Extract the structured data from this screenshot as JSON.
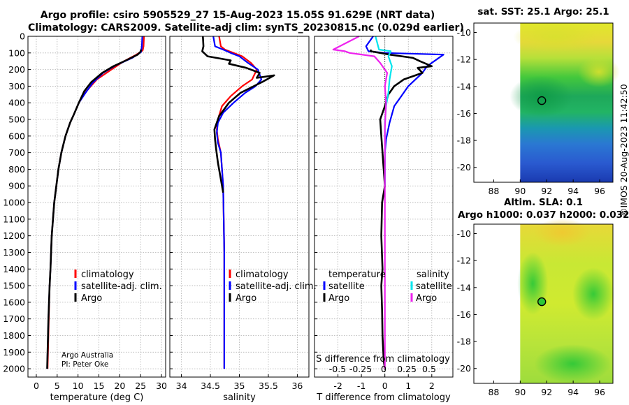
{
  "titles": {
    "line1": "Argo profile: csiro 5905529_27 15-Aug-2023 15.05S 91.629E (NRT data)",
    "line2": "Climatology: CARS2009. Satellite-adj clim: synTS_20230815.nc (0.029d earlier)"
  },
  "maps": {
    "sst_title": "sat. SST: 25.1 Argo: 25.1",
    "sla_title1": "Altim. SLA: 0.1",
    "sla_title2": "Argo h1000: 0.037 h2000: 0.032"
  },
  "credit": {
    "line1": "Argo Australia",
    "line2": "PI: Peter Oke"
  },
  "timestamp": "©IMOS 20-Aug-2023 11:42:50",
  "colors": {
    "climatology": "#ff0000",
    "satellite": "#0000ff",
    "argo": "#000000",
    "sal_satellite": "#00e5ee",
    "sal_argo": "#ee22ee"
  },
  "chart_data": [
    {
      "type": "line",
      "xlabel": "temperature (deg C)",
      "ylabel": "",
      "xlim": [
        -2,
        31
      ],
      "ylim": [
        2050,
        0
      ],
      "xticks": [
        0,
        5,
        10,
        15,
        20,
        25,
        30
      ],
      "yticks": [
        0,
        100,
        200,
        300,
        400,
        500,
        600,
        700,
        800,
        900,
        1000,
        1100,
        1200,
        1300,
        1400,
        1500,
        1600,
        1700,
        1800,
        1900,
        2000
      ],
      "legend": [
        "climatology",
        "satellite-adj. clim.",
        "Argo"
      ],
      "series": [
        {
          "name": "climatology",
          "color": "#ff0000",
          "x": [
            25.8,
            25.7,
            25.5,
            24,
            21,
            18,
            14.5,
            12,
            10.2,
            9,
            8.1,
            7,
            6,
            5.3,
            4.8,
            4.3,
            4,
            3.7,
            3.4,
            3.2,
            3,
            2.8,
            2.7
          ],
          "y": [
            0,
            60,
            85,
            110,
            150,
            200,
            260,
            330,
            400,
            470,
            520,
            600,
            700,
            800,
            900,
            1000,
            1100,
            1200,
            1400,
            1500,
            1700,
            1900,
            2000
          ]
        },
        {
          "name": "satellite-adj. clim.",
          "color": "#0000ff",
          "x": [
            25.4,
            25.3,
            25.1,
            23,
            19,
            16,
            13.5,
            11.8,
            10.2,
            9,
            8.1,
            7,
            6,
            5.3,
            4.8,
            4.3,
            4,
            3.7,
            3.4,
            3.2,
            2.9,
            2.7,
            2.6
          ],
          "y": [
            0,
            60,
            95,
            130,
            175,
            220,
            280,
            340,
            400,
            470,
            520,
            600,
            700,
            800,
            900,
            1000,
            1100,
            1200,
            1400,
            1500,
            1700,
            1900,
            2000
          ]
        },
        {
          "name": "Argo",
          "color": "#000000",
          "x": [
            25.1,
            25,
            24.3,
            21.5,
            18.5,
            15.8,
            13.2,
            11.5,
            10.2,
            9,
            8.1,
            7,
            6,
            5.3,
            4.8,
            4.3,
            4,
            3.7,
            3.4,
            3.2,
            2.9,
            2.7,
            2.6
          ],
          "y": [
            80,
            92,
            110,
            145,
            180,
            220,
            275,
            330,
            400,
            470,
            520,
            600,
            700,
            800,
            900,
            1000,
            1100,
            1200,
            1400,
            1500,
            1700,
            1900,
            2000
          ]
        }
      ]
    },
    {
      "type": "line",
      "xlabel": "salinity",
      "ylabel": "",
      "xlim": [
        33.8,
        36.2
      ],
      "ylim": [
        2050,
        0
      ],
      "xticks": [
        34,
        34.5,
        35,
        35.5,
        36
      ],
      "legend": [
        "climatology",
        "satellite-adj. clim.",
        "Argo"
      ],
      "series": [
        {
          "name": "climatology",
          "color": "#ff0000",
          "x": [
            34.65,
            34.68,
            34.75,
            34.9,
            35.05,
            35.2,
            35.3,
            35.22,
            35.05,
            34.85,
            34.7,
            34.63,
            34.61,
            34.63,
            34.68,
            34.72,
            34.73,
            34.74,
            34.74,
            34.74,
            34.74
          ],
          "y": [
            0,
            60,
            80,
            100,
            120,
            160,
            200,
            260,
            300,
            360,
            420,
            500,
            560,
            620,
            700,
            900,
            1100,
            1300,
            1600,
            1800,
            2000
          ]
        },
        {
          "name": "satellite-adj. clim.",
          "color": "#0000ff",
          "x": [
            34.55,
            34.58,
            34.72,
            34.85,
            35,
            35.15,
            35.32,
            35.38,
            35.28,
            35.1,
            34.9,
            34.72,
            34.63,
            34.61,
            34.63,
            34.68,
            34.72,
            34.73,
            34.74,
            34.74,
            34.74,
            34.74
          ],
          "y": [
            0,
            60,
            80,
            100,
            120,
            160,
            200,
            260,
            300,
            340,
            400,
            460,
            520,
            580,
            640,
            700,
            900,
            1100,
            1300,
            1600,
            1800,
            2000
          ]
        },
        {
          "name": "Argo",
          "color": "#000000",
          "x": [
            34.37,
            34.38,
            34.36,
            34.45,
            34.85,
            34.82,
            35.12,
            35.35,
            35.3,
            35.6,
            35.42,
            35.25,
            35.02,
            34.82,
            34.65,
            34.57,
            34.58,
            34.6,
            34.63,
            34.68,
            34.72
          ],
          "y": [
            0,
            60,
            90,
            120,
            145,
            165,
            190,
            220,
            250,
            235,
            270,
            300,
            340,
            400,
            480,
            560,
            620,
            680,
            760,
            860,
            940
          ]
        }
      ]
    },
    {
      "type": "line",
      "xlabel": "T difference from climatology",
      "xlabel_top": "S difference from climatology",
      "xlim": [
        -3,
        2.9
      ],
      "ylim": [
        2050,
        0
      ],
      "xticks": [
        -2,
        -1,
        0,
        1,
        2
      ],
      "xticks_top": [
        "-0.5",
        "-0.25",
        "0",
        "0.25",
        "0.5"
      ],
      "legend_temperature_header": "temperature",
      "legend_salinity_header": "salinity",
      "legend_temperature": [
        "satellite",
        "Argo"
      ],
      "legend_salinity": [
        "satellite",
        "Argo"
      ],
      "series": [
        {
          "name": "temperature satellite",
          "color": "#0000ff",
          "x": [
            -0.5,
            -0.8,
            -0.7,
            0,
            2.5,
            2.2,
            1.8,
            1.6,
            1.3,
            1.0,
            0.7,
            0.4,
            0.2,
            0.05,
            0,
            0,
            0
          ],
          "y": [
            0,
            60,
            90,
            100,
            110,
            140,
            180,
            220,
            260,
            300,
            360,
            420,
            520,
            620,
            700,
            800,
            900
          ]
        },
        {
          "name": "temperature Argo",
          "color": "#000000",
          "x": [
            -0.6,
            -0.6,
            0.2,
            1.2,
            1.5,
            2.0,
            1.4,
            1.6,
            0.8,
            0.4,
            0.15,
            0,
            -0.2,
            -0.15,
            -0.1,
            -0.05,
            0,
            -0.12,
            -0.15,
            -0.1,
            -0.15,
            -0.12,
            -0.1,
            -0.05,
            0
          ],
          "y": [
            80,
            90,
            110,
            130,
            150,
            180,
            190,
            220,
            260,
            300,
            350,
            420,
            500,
            600,
            700,
            800,
            900,
            1000,
            1200,
            1400,
            1500,
            1650,
            1800,
            1950,
            2000
          ]
        },
        {
          "name": "salinity satellite",
          "color": "#00e5ee",
          "x": [
            -0.4,
            -0.25,
            0.25,
            0.15,
            0.3,
            0.2,
            0.15,
            0.05,
            0,
            0,
            0
          ],
          "y": [
            0,
            80,
            90,
            120,
            180,
            260,
            340,
            420,
            520,
            700,
            900
          ]
        },
        {
          "name": "salinity Argo",
          "color": "#ee22ee",
          "x": [
            -1.1,
            -2.2,
            -1.7,
            -1.5,
            -0.45,
            -0.2,
            0.1,
            0,
            0.05,
            0,
            0,
            0,
            0
          ],
          "y": [
            0,
            80,
            90,
            100,
            120,
            160,
            220,
            300,
            400,
            550,
            700,
            1000,
            2000
          ]
        }
      ]
    },
    {
      "type": "heatmap",
      "title": "sat. SST: 25.1 Argo: 25.1",
      "xlim": [
        86.5,
        97
      ],
      "ylim": [
        -21.1,
        -9.3
      ],
      "xticks": [
        88,
        90,
        92,
        94,
        96
      ],
      "yticks": [
        -10,
        -12,
        -14,
        -16,
        -18,
        -20
      ],
      "data_lon_start": 90,
      "argo_position": [
        91.629,
        -15.05
      ]
    },
    {
      "type": "heatmap",
      "title": "Altim. SLA: 0.1",
      "xlim": [
        86.5,
        97
      ],
      "ylim": [
        -21.1,
        -9.3
      ],
      "xticks": [
        88,
        90,
        92,
        94,
        96
      ],
      "yticks": [
        -10,
        -12,
        -14,
        -16,
        -18,
        -20
      ],
      "data_lon_start": 90,
      "argo_position": [
        91.629,
        -15.05
      ]
    }
  ]
}
